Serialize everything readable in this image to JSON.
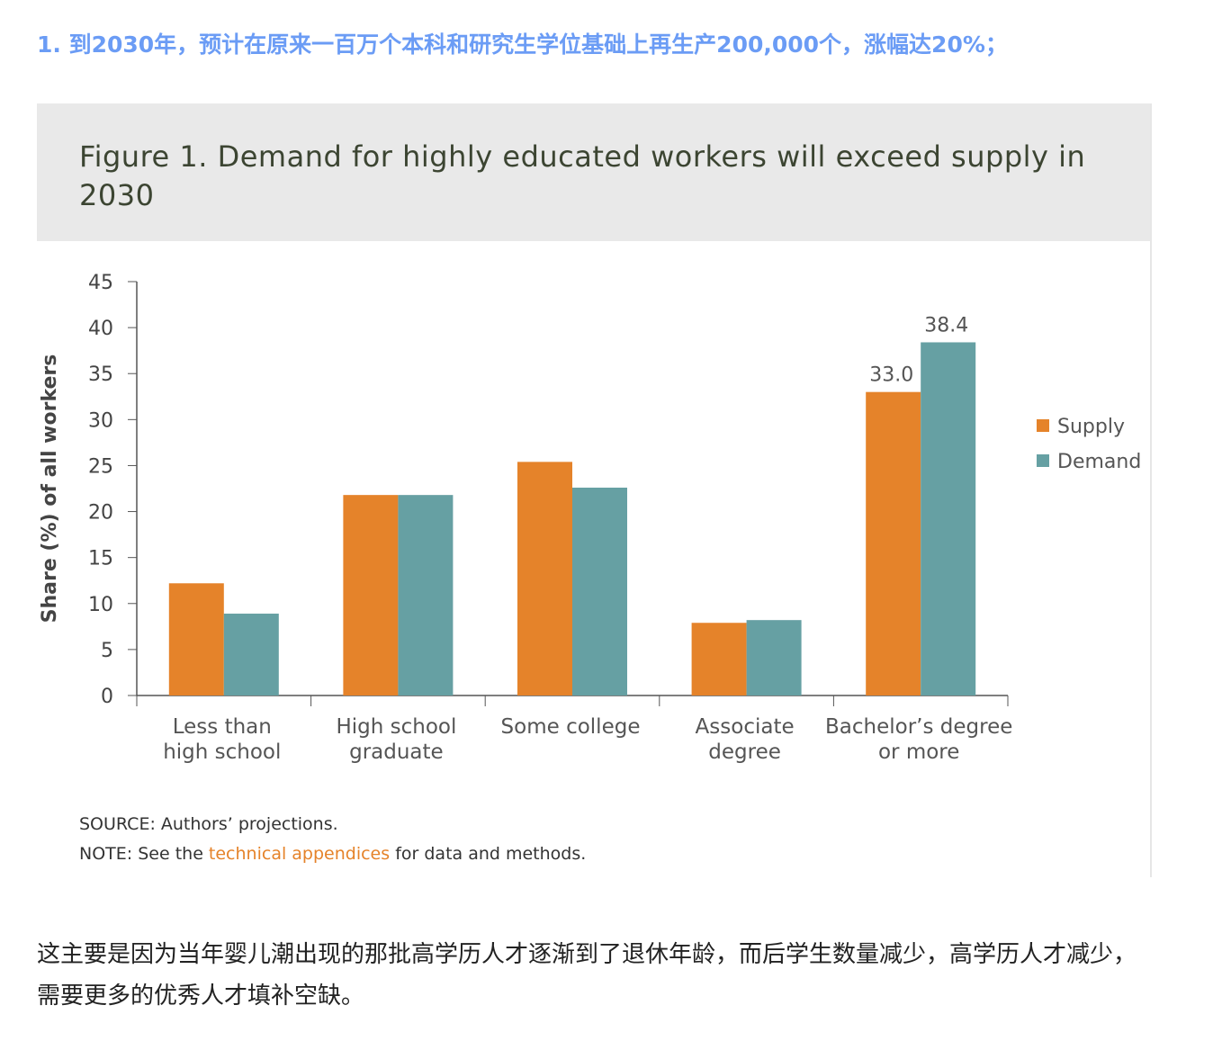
{
  "heading": "1. 到2030年，预计在原来一百万个本科和研究生学位基础上再生产200,000个，涨幅达20%；",
  "figure": {
    "title": "Figure 1. Demand for highly educated workers will exceed supply in 2030",
    "source": "SOURCE: Authors’ projections.",
    "note_prefix": "NOTE: See the ",
    "note_link": "technical appendices",
    "note_suffix": " for data and methods."
  },
  "chart_data": {
    "type": "bar",
    "title": "Figure 1. Demand for highly educated workers will exceed supply in 2030",
    "ylabel": "Share (%) of all workers",
    "xlabel": "",
    "ylim": [
      0,
      45
    ],
    "yticks": [
      0,
      5,
      10,
      15,
      20,
      25,
      30,
      35,
      40,
      45
    ],
    "categories": [
      [
        "Less than",
        "high school"
      ],
      [
        "High school",
        "graduate"
      ],
      [
        "Some college"
      ],
      [
        "Associate",
        "degree"
      ],
      [
        "Bachelor’s degree",
        "or more"
      ]
    ],
    "series": [
      {
        "name": "Supply",
        "color": "#e5832a",
        "values": [
          12.2,
          21.8,
          25.4,
          7.9,
          33.0
        ]
      },
      {
        "name": "Demand",
        "color": "#66a0a3",
        "values": [
          8.9,
          21.8,
          22.6,
          8.2,
          38.4
        ]
      }
    ],
    "data_labels": [
      {
        "category": 4,
        "series": 0,
        "text": "33.0"
      },
      {
        "category": 4,
        "series": 1,
        "text": "38.4"
      }
    ],
    "legend": "right",
    "grid": false
  },
  "paragraph": "这主要是因为当年婴儿潮出现的那批高学历人才逐渐到了退休年龄，而后学生数量减少，高学历人才减少，需要更多的优秀人才填补空缺。"
}
